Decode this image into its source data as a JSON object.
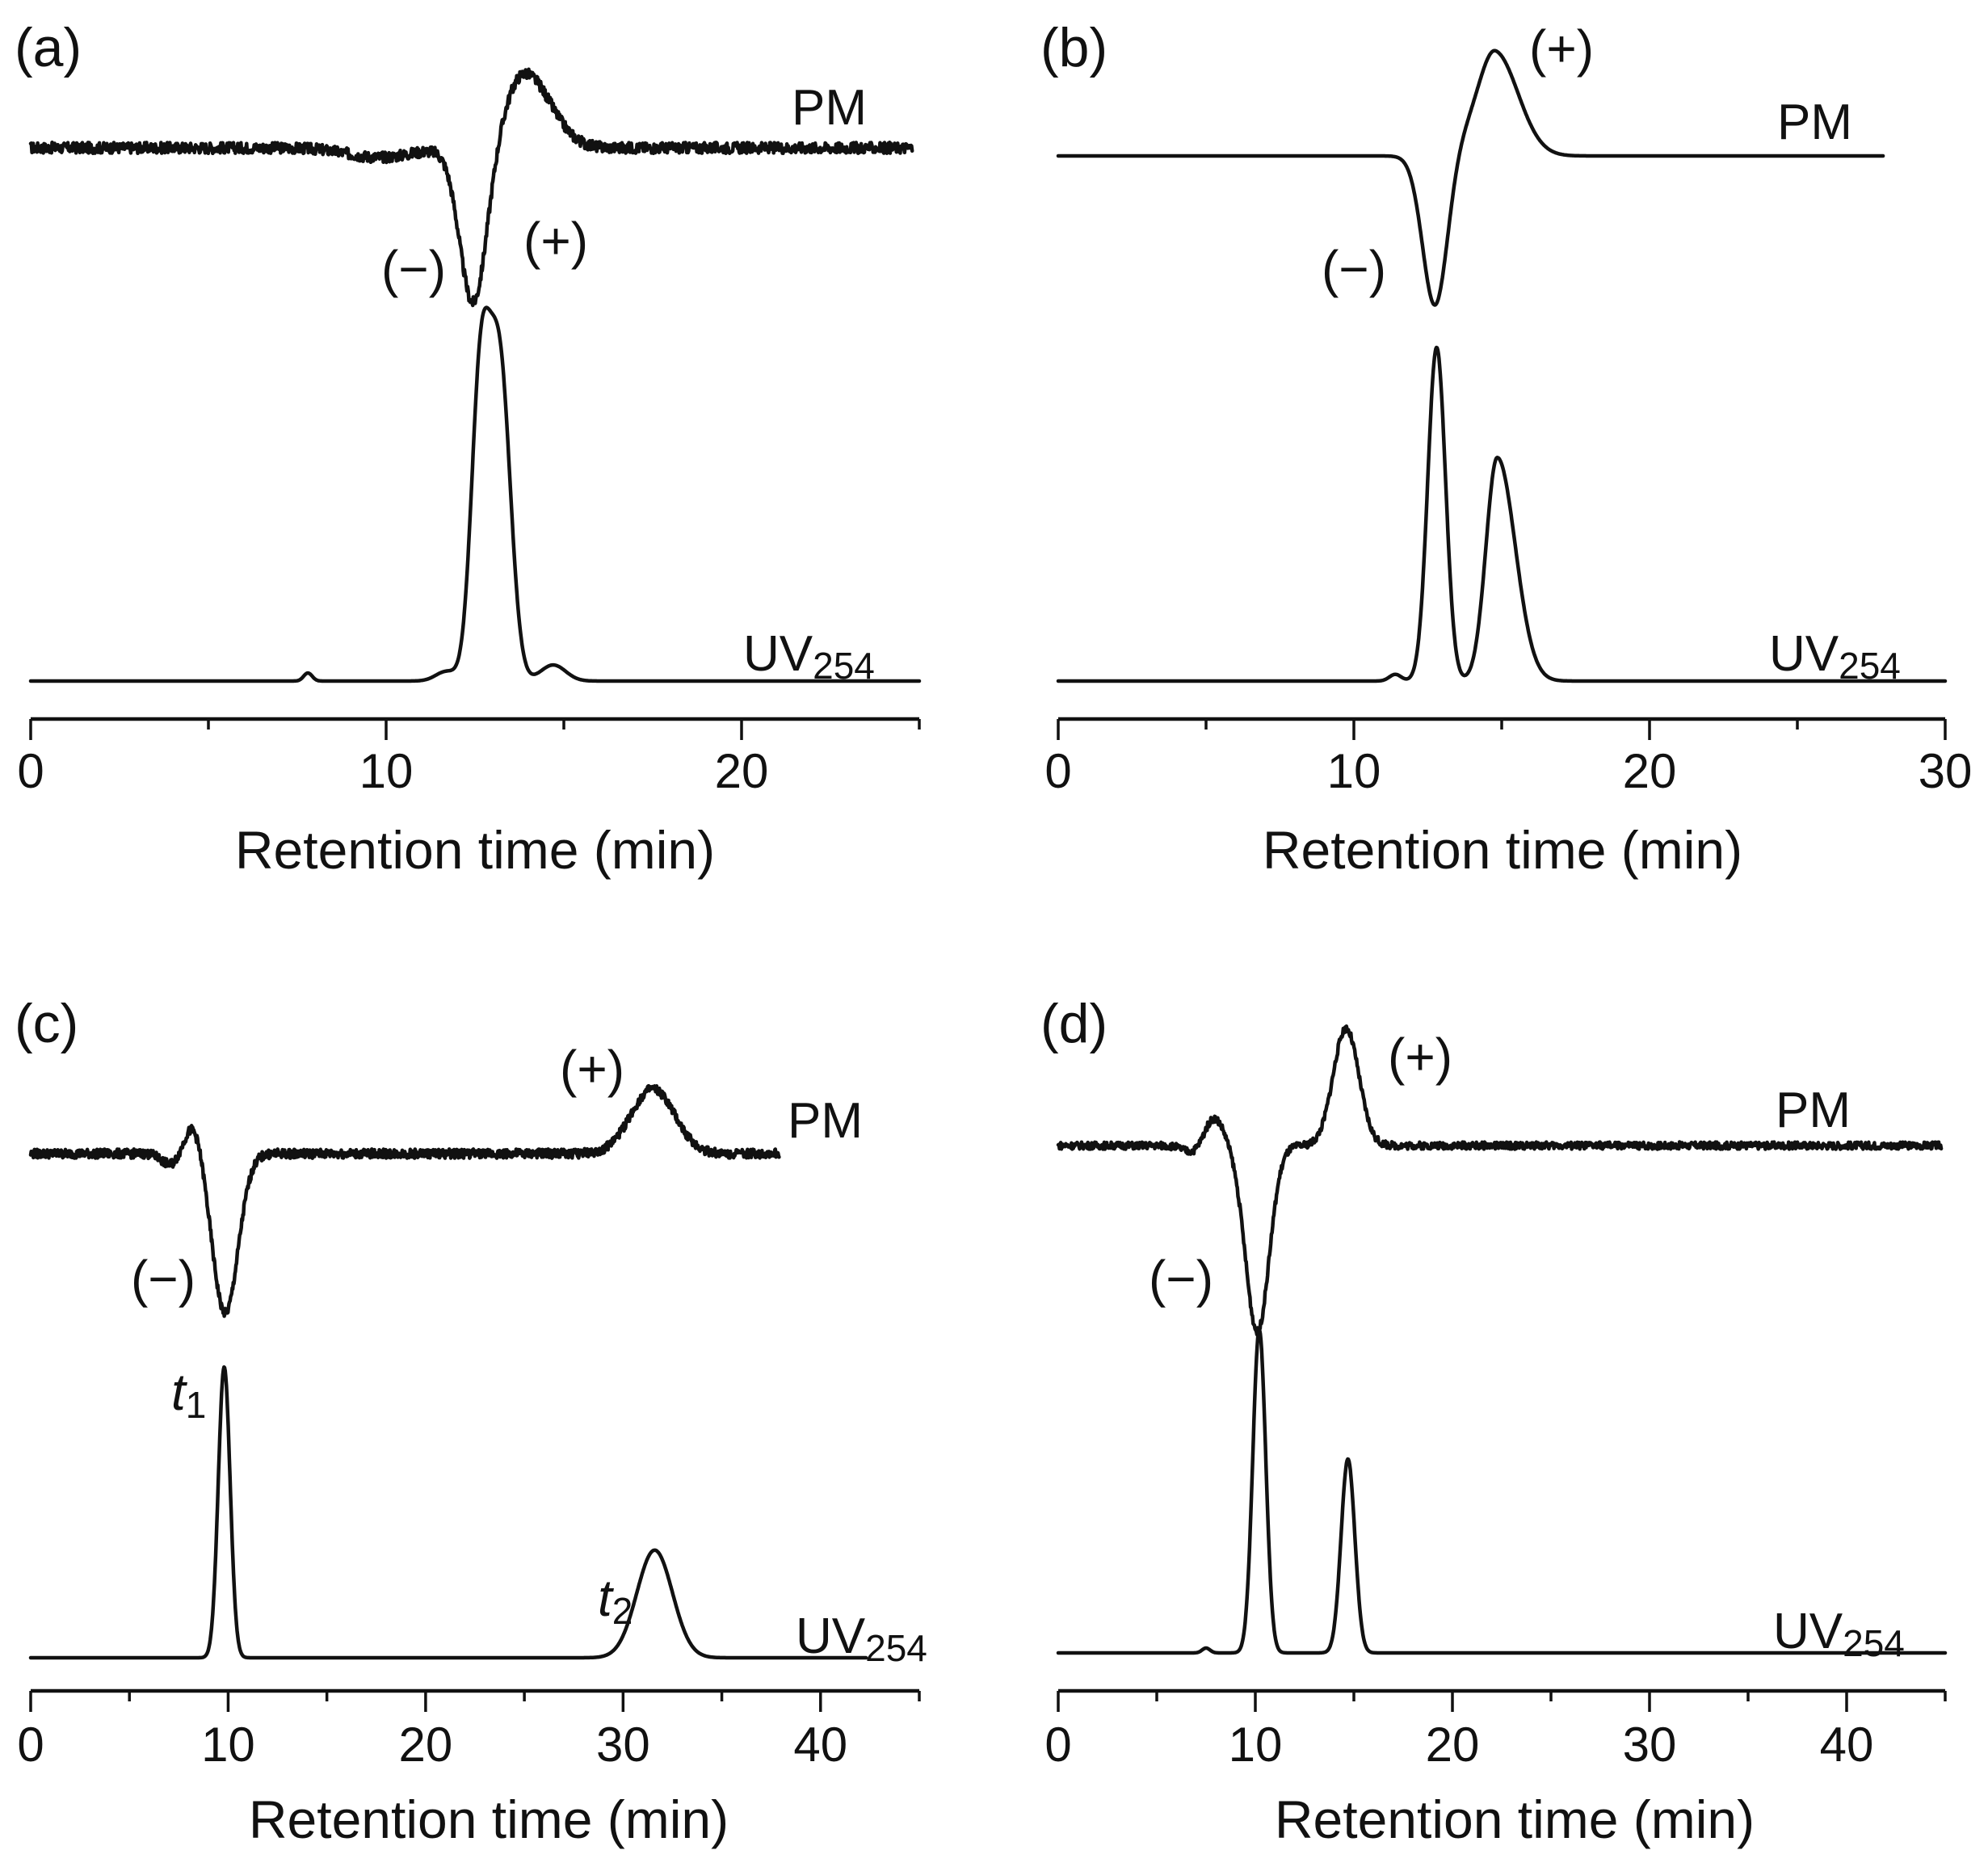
{
  "figure": {
    "description_free": true
  },
  "chart_data": [
    {
      "id": "a",
      "type": "line",
      "panel_label": "(a)",
      "xlabel": "Retention time (min)",
      "xlim": [
        0,
        25
      ],
      "ticks": [
        0,
        10,
        20
      ],
      "minor_step": 5,
      "traces": {
        "pm": {
          "name": "PM",
          "kind": "cd",
          "noise": 0.07,
          "x_end": 24.8,
          "ylim": [
            -2.2,
            1.0
          ],
          "peaks": [
            {
              "c": 9.8,
              "h": -0.12,
              "w": 0.9
            },
            {
              "c": 12.45,
              "h": -2.0,
              "w": 0.38
            },
            {
              "c": 13.9,
              "h": 0.95,
              "w": 0.55,
              "wr": 1.3
            }
          ]
        },
        "uv": {
          "name": "UV",
          "subscript": "254",
          "x_end": 25.0,
          "peaks": [
            {
              "c": 7.8,
              "h": 0.025,
              "w": 0.12
            },
            {
              "c": 11.7,
              "h": 0.03,
              "w": 0.3
            },
            {
              "c": 12.65,
              "h": 0.9,
              "w": 0.26
            },
            {
              "c": 13.2,
              "h": 0.97,
              "w": 0.3
            },
            {
              "c": 14.7,
              "h": 0.05,
              "w": 0.35
            }
          ]
        }
      },
      "annotations": [
        {
          "text": "(−)",
          "target": "pm",
          "at_x": 11.1,
          "near": -1.55
        },
        {
          "text": "(+)",
          "target": "pm",
          "at_x": 14.9,
          "near": -1.35
        }
      ]
    },
    {
      "id": "b",
      "type": "line",
      "panel_label": "(b)",
      "xlabel": "Retention time (min)",
      "xlim": [
        0,
        30
      ],
      "ticks": [
        0,
        10,
        20,
        30
      ],
      "minor_step": 5,
      "traces": {
        "pm": {
          "name": "PM",
          "kind": "cd",
          "noise": 0.0,
          "x_end": 27.9,
          "ylim": [
            -2.4,
            1.5
          ],
          "peaks": [
            {
              "c": 12.75,
              "h": -2.2,
              "w": 0.42
            },
            {
              "c": 14.8,
              "h": 1.45,
              "w": 0.55,
              "wr": 1.4
            },
            {
              "c": 13.8,
              "h": 0.25,
              "w": 0.6
            }
          ]
        },
        "uv": {
          "name": "UV",
          "subscript": "254",
          "x_end": 30.0,
          "peaks": [
            {
              "c": 11.4,
              "h": 0.02,
              "w": 0.2
            },
            {
              "c": 12.8,
              "h": 1.0,
              "w": 0.3
            },
            {
              "c": 14.85,
              "h": 0.67,
              "w": 0.38,
              "wr": 1.6
            }
          ]
        }
      },
      "annotations": [
        {
          "text": "(−)",
          "target": "pm",
          "at_x": 10.0,
          "near": -1.7
        },
        {
          "text": "(+)",
          "target": "pm",
          "at_x": 17.4,
          "near": 1.45
        }
      ]
    },
    {
      "id": "c",
      "type": "line",
      "panel_label": "(c)",
      "xlabel": "Retention time (min)",
      "xlim": [
        0,
        45
      ],
      "ticks": [
        0,
        10,
        20,
        30,
        40
      ],
      "minor_step": 5,
      "traces": {
        "pm": {
          "name": "PM",
          "kind": "cd",
          "noise": 0.06,
          "x_end": 37.9,
          "ylim": [
            -2.2,
            0.9
          ],
          "peaks": [
            {
              "c": 7.1,
              "h": -0.15,
              "w": 0.45
            },
            {
              "c": 8.25,
              "h": 0.4,
              "w": 0.45
            },
            {
              "c": 9.85,
              "h": -2.1,
              "w": 0.65
            },
            {
              "c": 31.5,
              "h": 0.85,
              "w": 1.1
            }
          ]
        },
        "uv": {
          "name": "UV",
          "subscript": "254",
          "x_end": 42.3,
          "peaks": [
            {
              "c": 9.8,
              "h": 1.0,
              "w": 0.3
            },
            {
              "c": 31.6,
              "h": 0.37,
              "w": 0.9
            }
          ]
        }
      },
      "annotations": [
        {
          "text": "(−)",
          "target": "pm",
          "at_x": 6.9,
          "near": -1.4
        },
        {
          "text": "(+)",
          "target": "pm",
          "at_x": 28.5,
          "near": 0.9
        }
      ],
      "peak_labels": [
        {
          "letter": "t",
          "subscript": "1",
          "x": 8.5,
          "level": 0.93
        },
        {
          "letter": "t",
          "subscript": "2",
          "x": 30.0,
          "level": 0.44
        }
      ]
    },
    {
      "id": "d",
      "type": "line",
      "panel_label": "(d)",
      "xlabel": "Retention time (min)",
      "xlim": [
        0,
        45
      ],
      "ticks": [
        0,
        10,
        20,
        30,
        40
      ],
      "minor_step": 5,
      "traces": {
        "pm": {
          "name": "PM",
          "kind": "cd",
          "noise": 0.045,
          "x_end": 44.8,
          "ylim": [
            -2.3,
            1.45
          ],
          "peaks": [
            {
              "c": 6.9,
              "h": -0.1,
              "w": 0.5
            },
            {
              "c": 7.9,
              "h": 0.35,
              "w": 0.5
            },
            {
              "c": 10.1,
              "h": -2.3,
              "w": 0.6
            },
            {
              "c": 14.6,
              "h": 1.45,
              "w": 0.65
            }
          ]
        },
        "uv": {
          "name": "UV",
          "subscript": "254",
          "x_end": 45.0,
          "peaks": [
            {
              "c": 7.5,
              "h": 0.015,
              "w": 0.2
            },
            {
              "c": 10.2,
              "h": 1.0,
              "w": 0.33
            },
            {
              "c": 14.7,
              "h": 0.6,
              "w": 0.35
            }
          ]
        }
      },
      "annotations": [
        {
          "text": "(−)",
          "target": "pm",
          "at_x": 6.4,
          "near": -1.6
        },
        {
          "text": "(+)",
          "target": "pm",
          "at_x": 18.8,
          "near": 1.1
        }
      ]
    }
  ]
}
